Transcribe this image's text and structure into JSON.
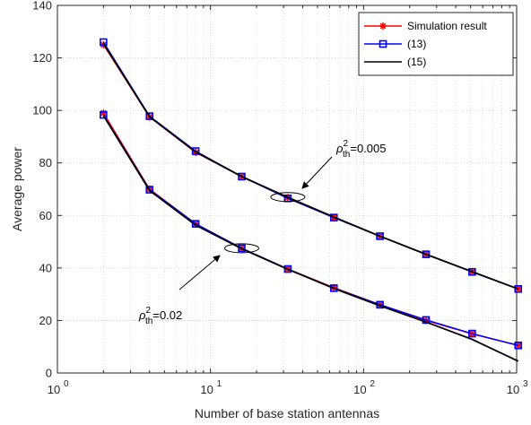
{
  "chart_data": {
    "type": "line",
    "xlabel": "Number of base station antennas",
    "ylabel": "Average power",
    "xscale": "log",
    "xlim": [
      1,
      1000
    ],
    "ylim": [
      0,
      140
    ],
    "x_ticks": [
      {
        "value": 1,
        "base": "10",
        "exp": "0"
      },
      {
        "value": 10,
        "base": "10",
        "exp": "1"
      },
      {
        "value": 100,
        "base": "10",
        "exp": "2"
      },
      {
        "value": 1000,
        "base": "10",
        "exp": "3"
      }
    ],
    "y_ticks": [
      "0",
      "20",
      "40",
      "60",
      "80",
      "100",
      "120",
      "140"
    ],
    "grid": true,
    "minor_grid_x": true,
    "legend_position": "top-right",
    "legend": [
      {
        "label": "Simulation result",
        "color": "#ff0000",
        "marker": "asterisk"
      },
      {
        "label": "(13)",
        "color": "#0000ff",
        "marker": "square"
      },
      {
        "label": "(15)",
        "color": "#000000",
        "marker": "none"
      }
    ],
    "x": [
      2,
      4,
      8,
      16,
      32,
      64,
      128,
      256,
      512,
      1024
    ],
    "groups": [
      {
        "annotation_base": "ρ",
        "annotation_sup": "2",
        "annotation_sub": "th",
        "annotation_value": "=0.005",
        "ellipse_at": [
          32,
          67
        ],
        "series": [
          {
            "legend_index": 0,
            "color": "#ff0000",
            "values": [
              125,
              97.5,
              84,
              74.8,
              66.8,
              59.2,
              52.1,
              45.2,
              38.5,
              32
            ]
          },
          {
            "legend_index": 1,
            "color": "#0000ff",
            "values": [
              126,
              97.8,
              84.5,
              74.8,
              66.5,
              59.2,
              52.1,
              45.2,
              38.5,
              32
            ]
          },
          {
            "legend_index": 2,
            "color": "#000000",
            "values": [
              125.5,
              97.6,
              84.2,
              74.8,
              66.9,
              59.4,
              52.1,
              45.2,
              38.6,
              32
            ]
          }
        ]
      },
      {
        "annotation_base": "ρ",
        "annotation_sup": "2",
        "annotation_sub": "th",
        "annotation_value": "=0.02",
        "ellipse_at": [
          16,
          47.5
        ],
        "series": [
          {
            "legend_index": 0,
            "color": "#ff0000",
            "values": [
              99,
              70,
              56.8,
              47.5,
              39.6,
              32.5,
              26,
              20,
              14.9,
              10.5
            ]
          },
          {
            "legend_index": 1,
            "color": "#0000ff",
            "values": [
              98.3,
              69.8,
              56.8,
              47.5,
              39.6,
              32.3,
              26,
              20.2,
              15,
              10.5
            ]
          },
          {
            "legend_index": 2,
            "color": "#000000",
            "values": [
              98,
              69.5,
              56.3,
              47.3,
              39.5,
              32.2,
              25.6,
              19.4,
              12.8,
              4.5
            ]
          }
        ]
      }
    ]
  }
}
